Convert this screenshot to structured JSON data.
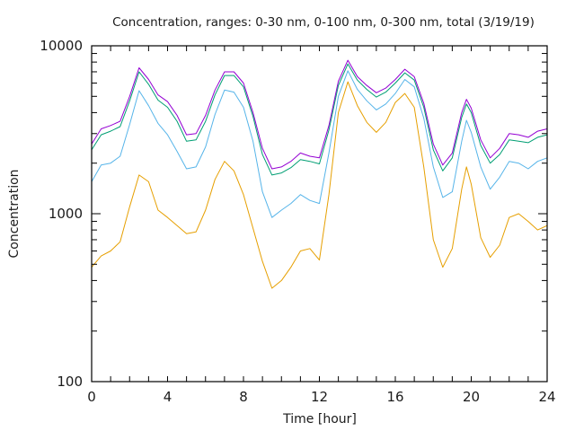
{
  "chart_data": {
    "type": "line",
    "title": "Concentration, ranges: 0-30 nm, 0-100 nm, 0-300 nm, total (3/19/19)",
    "xlabel": "Time [hour]",
    "ylabel": "Concentration",
    "xlim": [
      0,
      24
    ],
    "ylim": [
      100,
      10000
    ],
    "yscale": "log",
    "xticks": [
      0,
      4,
      8,
      12,
      16,
      20,
      24
    ],
    "xtick_labels": [
      "0",
      "4",
      "8",
      "12",
      "16",
      "20",
      "24"
    ],
    "yticks": [
      100,
      1000,
      10000
    ],
    "ytick_labels": [
      "100",
      "1000",
      "10000"
    ],
    "grid": false,
    "legend": "none",
    "x": [
      0,
      0.5,
      1,
      1.5,
      2,
      2.5,
      3,
      3.5,
      4,
      4.5,
      5,
      5.5,
      6,
      6.5,
      7,
      7.5,
      8,
      8.5,
      9,
      9.5,
      10,
      10.5,
      11,
      11.5,
      12,
      12.5,
      13,
      13.5,
      14,
      14.5,
      15,
      15.5,
      16,
      16.5,
      17,
      17.5,
      18,
      18.5,
      19,
      19.5,
      19.75,
      20,
      20.5,
      21,
      21.5,
      22,
      22.5,
      23,
      23.5,
      24
    ],
    "series": [
      {
        "name": "total",
        "color": "#9400d3",
        "values": [
          2600,
          3200,
          3350,
          3550,
          5000,
          7400,
          6300,
          5100,
          4650,
          3850,
          2950,
          3000,
          3850,
          5450,
          7000,
          7000,
          6000,
          4000,
          2450,
          1850,
          1900,
          2050,
          2300,
          2200,
          2150,
          3350,
          6150,
          8200,
          6550,
          5800,
          5250,
          5600,
          6300,
          7250,
          6550,
          4550,
          2600,
          1950,
          2300,
          4000,
          4800,
          4250,
          2750,
          2150,
          2450,
          3000,
          2950,
          2850,
          3100,
          3200
        ]
      },
      {
        "name": "0-300 nm",
        "color": "#009e73",
        "values": [
          2400,
          2950,
          3100,
          3300,
          4700,
          7000,
          5900,
          4750,
          4300,
          3550,
          2700,
          2750,
          3550,
          5100,
          6650,
          6650,
          5700,
          3800,
          2250,
          1700,
          1750,
          1880,
          2100,
          2050,
          1980,
          3150,
          5800,
          7800,
          6250,
          5500,
          4950,
          5300,
          6000,
          6900,
          6250,
          4300,
          2400,
          1800,
          2150,
          3750,
          4500,
          4000,
          2550,
          2000,
          2250,
          2750,
          2700,
          2650,
          2850,
          2950
        ]
      },
      {
        "name": "0-100 nm",
        "color": "#56b4e9",
        "values": [
          1550,
          1950,
          2000,
          2200,
          3400,
          5400,
          4400,
          3450,
          2950,
          2350,
          1850,
          1900,
          2500,
          3900,
          5450,
          5300,
          4300,
          2700,
          1350,
          950,
          1050,
          1150,
          1300,
          1200,
          1150,
          2300,
          5000,
          7100,
          5500,
          4700,
          4150,
          4500,
          5200,
          6300,
          5700,
          3700,
          1900,
          1250,
          1350,
          2700,
          3600,
          3050,
          1900,
          1400,
          1650,
          2050,
          2000,
          1850,
          2050,
          2150
        ]
      },
      {
        "name": "0-30 nm",
        "color": "#e69f00",
        "values": [
          480,
          560,
          600,
          680,
          1100,
          1700,
          1550,
          1050,
          950,
          850,
          760,
          780,
          1050,
          1600,
          2050,
          1800,
          1300,
          820,
          520,
          360,
          400,
          480,
          600,
          620,
          530,
          1300,
          4000,
          6100,
          4400,
          3500,
          3050,
          3500,
          4600,
          5200,
          4300,
          1900,
          700,
          480,
          620,
          1400,
          1900,
          1500,
          720,
          550,
          650,
          950,
          1000,
          900,
          800,
          850
        ]
      }
    ]
  }
}
